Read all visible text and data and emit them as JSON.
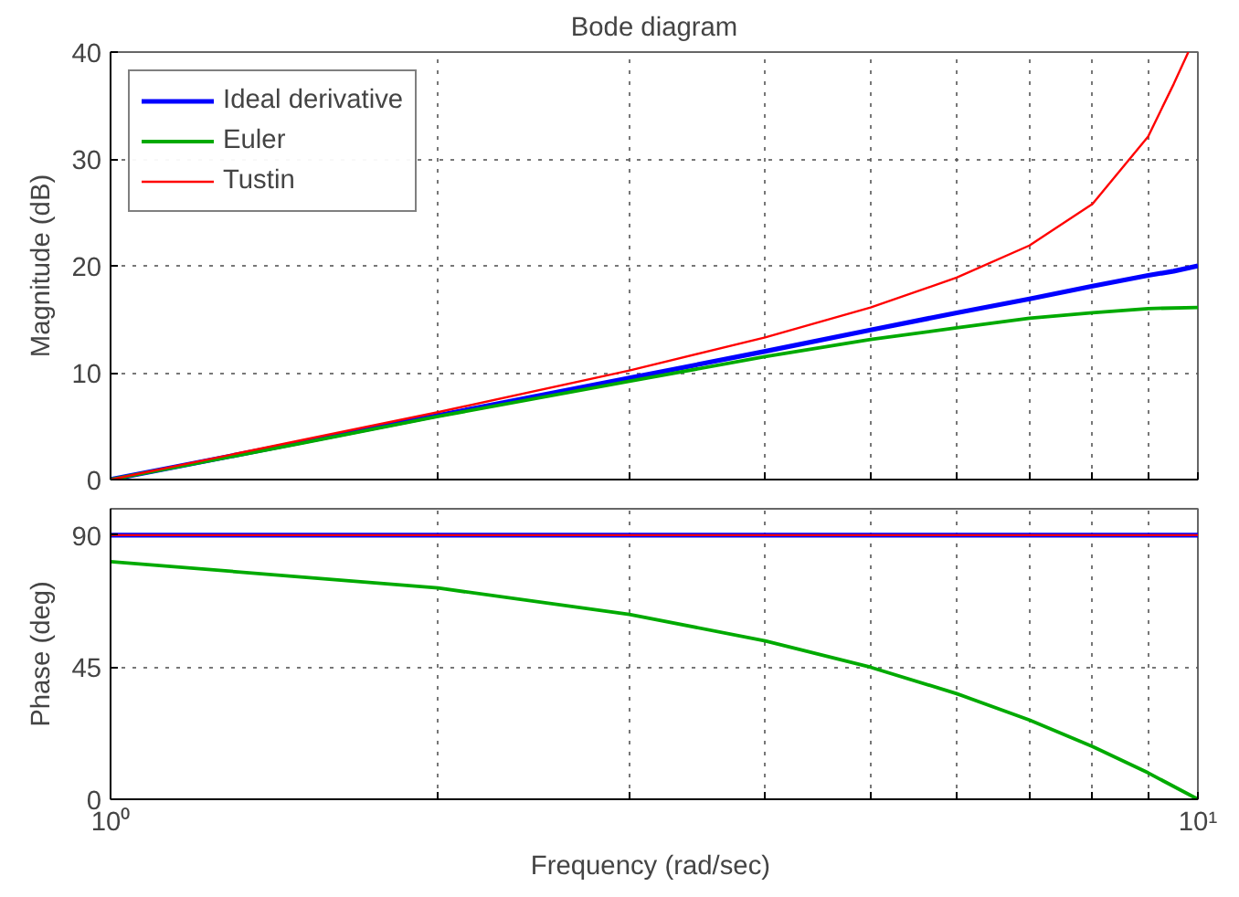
{
  "chart_data": [
    {
      "type": "line",
      "title": "Bode diagram",
      "ylabel": "Magnitude (dB)",
      "log": "x",
      "xlim": [
        1,
        10
      ],
      "ylim": [
        0,
        40
      ],
      "yticks": [
        0,
        10,
        20,
        30,
        40
      ],
      "xticks": [
        {
          "value": 1,
          "label": null
        },
        {
          "value": 2,
          "label": null
        },
        {
          "value": 3,
          "label": null
        },
        {
          "value": 4,
          "label": null
        },
        {
          "value": 5,
          "label": null
        },
        {
          "value": 6,
          "label": null
        },
        {
          "value": 7,
          "label": null
        },
        {
          "value": 8,
          "label": null
        },
        {
          "value": 9,
          "label": null
        },
        {
          "value": 10,
          "label": null
        }
      ],
      "tick_labels": "y",
      "grid": true,
      "legend": "top left",
      "line_style": "solid",
      "marker": "none",
      "series": [
        {
          "name": "Ideal derivative",
          "color": "#0000ff",
          "x": [
            1,
            1.5,
            2,
            3,
            4,
            5,
            6,
            7,
            8,
            9,
            9.5,
            10
          ],
          "values": [
            0,
            3.5,
            6.0,
            9.5,
            12.0,
            14.0,
            15.6,
            16.9,
            18.1,
            19.1,
            19.5,
            20
          ]
        },
        {
          "name": "Euler",
          "color": "#00aa00",
          "x": [
            1,
            1.5,
            2,
            3,
            4,
            5,
            6,
            7,
            8,
            9,
            10
          ],
          "values": [
            0,
            3.4,
            5.9,
            9.2,
            11.5,
            13.1,
            14.2,
            15.1,
            15.6,
            16.0,
            16.1
          ]
        },
        {
          "name": "Tustin",
          "color": "#ff0000",
          "x": [
            1,
            1.5,
            2,
            3,
            4,
            5,
            6,
            7,
            8,
            9,
            9.5,
            9.8
          ],
          "values": [
            0,
            3.7,
            6.3,
            10.2,
            13.3,
            16.1,
            18.9,
            21.9,
            25.8,
            32.1,
            37,
            40
          ]
        }
      ]
    },
    {
      "type": "line",
      "ylabel": "Phase (deg)",
      "xlabel": "Frequency  (rad/sec)",
      "log": "x",
      "xlim": [
        1,
        10
      ],
      "ylim": [
        0,
        99
      ],
      "yticks": [
        0,
        45,
        90
      ],
      "xticks": [
        {
          "value": 1,
          "label": "10⁰"
        },
        {
          "value": 2,
          "label": null
        },
        {
          "value": 3,
          "label": null
        },
        {
          "value": 4,
          "label": null
        },
        {
          "value": 5,
          "label": null
        },
        {
          "value": 6,
          "label": null
        },
        {
          "value": 7,
          "label": null
        },
        {
          "value": 8,
          "label": null
        },
        {
          "value": 9,
          "label": null
        },
        {
          "value": 10,
          "label": "10¹"
        }
      ],
      "grid": true,
      "line_style": "solid",
      "marker": "none",
      "series": [
        {
          "color": "#0000ff",
          "x": [
            1,
            10
          ],
          "values": [
            90,
            90
          ]
        },
        {
          "color": "#00aa00",
          "x": [
            1,
            2,
            3,
            4,
            5,
            6,
            7,
            8,
            9,
            10
          ],
          "values": [
            81,
            72,
            63,
            54,
            45,
            36,
            27,
            18,
            9,
            0
          ]
        },
        {
          "color": "#ff0000",
          "x": [
            1,
            10
          ],
          "values": [
            90,
            90
          ]
        }
      ]
    }
  ]
}
